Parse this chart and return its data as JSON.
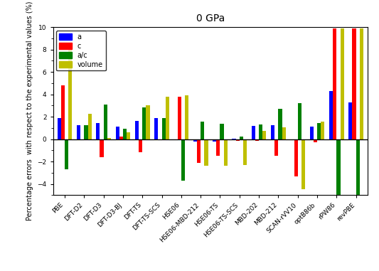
{
  "title": "0 GPa",
  "ylabel": "Percentage errors  with respect to the experimental values (%)",
  "categories": [
    "PBE",
    "DFT-D2",
    "DFT-D3",
    "DFT-D3-BJ",
    "DFT-TS",
    "DFT-TS-SCS",
    "HSE06",
    "HSE06-MBD-212",
    "HSE06-TS",
    "HSE06-TS-SCS",
    "MBD-202",
    "MBD-212",
    "SCAN-rVV10",
    "optB86b",
    "rPW86",
    "revPBE"
  ],
  "series": {
    "a": [
      1.85,
      1.25,
      1.45,
      1.1,
      1.6,
      1.85,
      0.0,
      -0.2,
      -0.2,
      0.05,
      1.15,
      1.25,
      -0.1,
      1.1,
      4.3,
      3.3
    ],
    "c": [
      4.8,
      0.0,
      -1.6,
      0.2,
      -1.2,
      0.0,
      3.8,
      -2.1,
      -1.5,
      -0.15,
      -0.15,
      -1.5,
      -3.3,
      -0.3,
      9.9,
      9.9
    ],
    "a/c": [
      -2.7,
      1.25,
      3.1,
      0.9,
      2.8,
      1.85,
      -3.7,
      1.55,
      1.35,
      0.2,
      1.3,
      2.7,
      3.2,
      1.45,
      -5.0,
      -5.0
    ],
    "volume": [
      8.6,
      2.25,
      0.1,
      0.6,
      3.0,
      3.8,
      3.9,
      -2.4,
      -2.35,
      -2.3,
      0.75,
      1.05,
      -4.45,
      1.55,
      9.9,
      9.9
    ]
  },
  "colors": {
    "a": "#0000ff",
    "c": "#ff0000",
    "a/c": "#008000",
    "volume": "#bfbf00"
  },
  "ylim": [
    -5,
    10
  ],
  "yticks": [
    -4,
    -2,
    0,
    2,
    4,
    6,
    8,
    10
  ],
  "figsize": [
    5.33,
    3.81
  ],
  "dpi": 100,
  "bar_width": 0.19,
  "legend_fontsize": 7,
  "tick_fontsize": 6.5,
  "ylabel_fontsize": 7,
  "title_fontsize": 10
}
